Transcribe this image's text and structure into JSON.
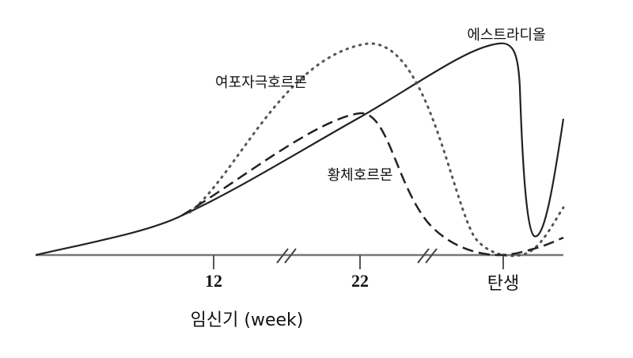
{
  "curves": {
    "estradiol": "에스트라디올",
    "fsh": "여포자극호르몬",
    "progesterone": "황체호르몬"
  },
  "x_axis": {
    "ticks": [
      "12",
      "22",
      "탄생"
    ],
    "label": "임신기 (week)"
  }
}
